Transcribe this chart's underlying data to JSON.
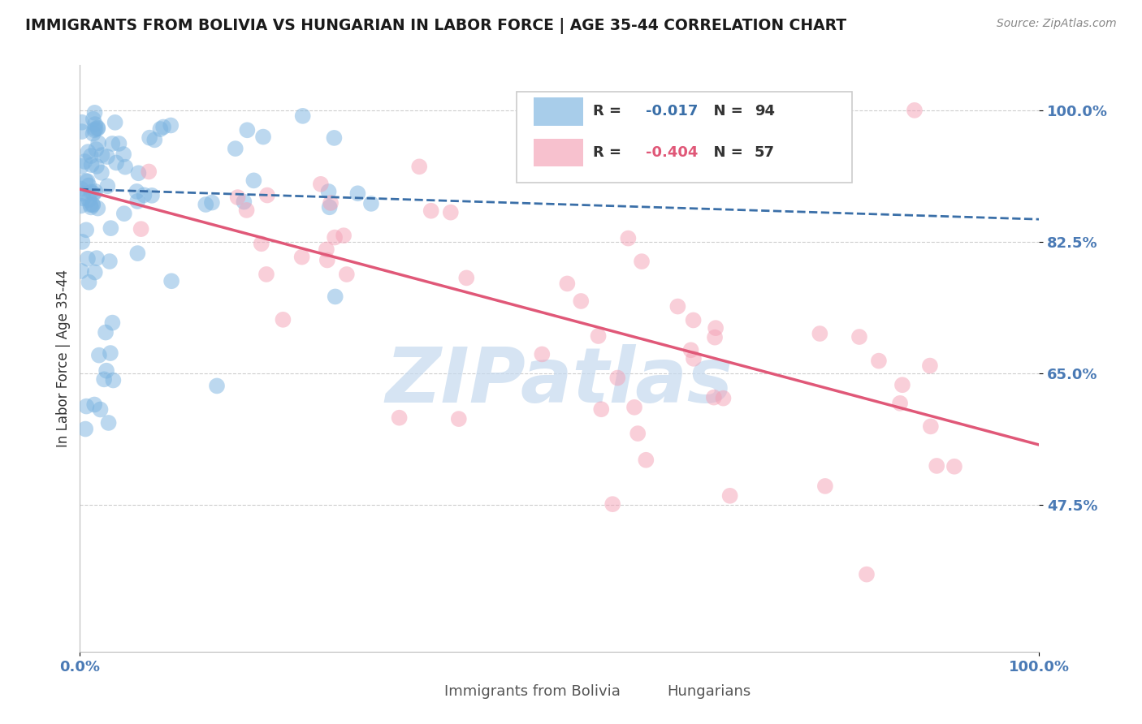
{
  "title": "IMMIGRANTS FROM BOLIVIA VS HUNGARIAN IN LABOR FORCE | AGE 35-44 CORRELATION CHART",
  "source_text": "Source: ZipAtlas.com",
  "ylabel": "In Labor Force | Age 35-44",
  "xlim": [
    0.0,
    1.0
  ],
  "ylim": [
    0.28,
    1.06
  ],
  "yticks": [
    0.475,
    0.65,
    0.825,
    1.0
  ],
  "ytick_labels": [
    "47.5%",
    "65.0%",
    "82.5%",
    "100.0%"
  ],
  "xticks": [
    0.0,
    1.0
  ],
  "xtick_labels": [
    "0.0%",
    "100.0%"
  ],
  "bottom_legend": [
    "Immigrants from Bolivia",
    "Hungarians"
  ],
  "blue_color": "#7ab3e0",
  "pink_color": "#f4a0b5",
  "blue_line_color": "#3a6fa8",
  "pink_line_color": "#e05878",
  "grid_color": "#c8c8c8",
  "tick_label_color": "#4a7ab5",
  "watermark_color": "#c5d9ee",
  "watermark_text": "ZIPatlas",
  "blue_N": 94,
  "pink_N": 57,
  "blue_trend_start": 0.895,
  "blue_trend_end": 0.855,
  "pink_trend_start": 0.895,
  "pink_trend_end": 0.555
}
